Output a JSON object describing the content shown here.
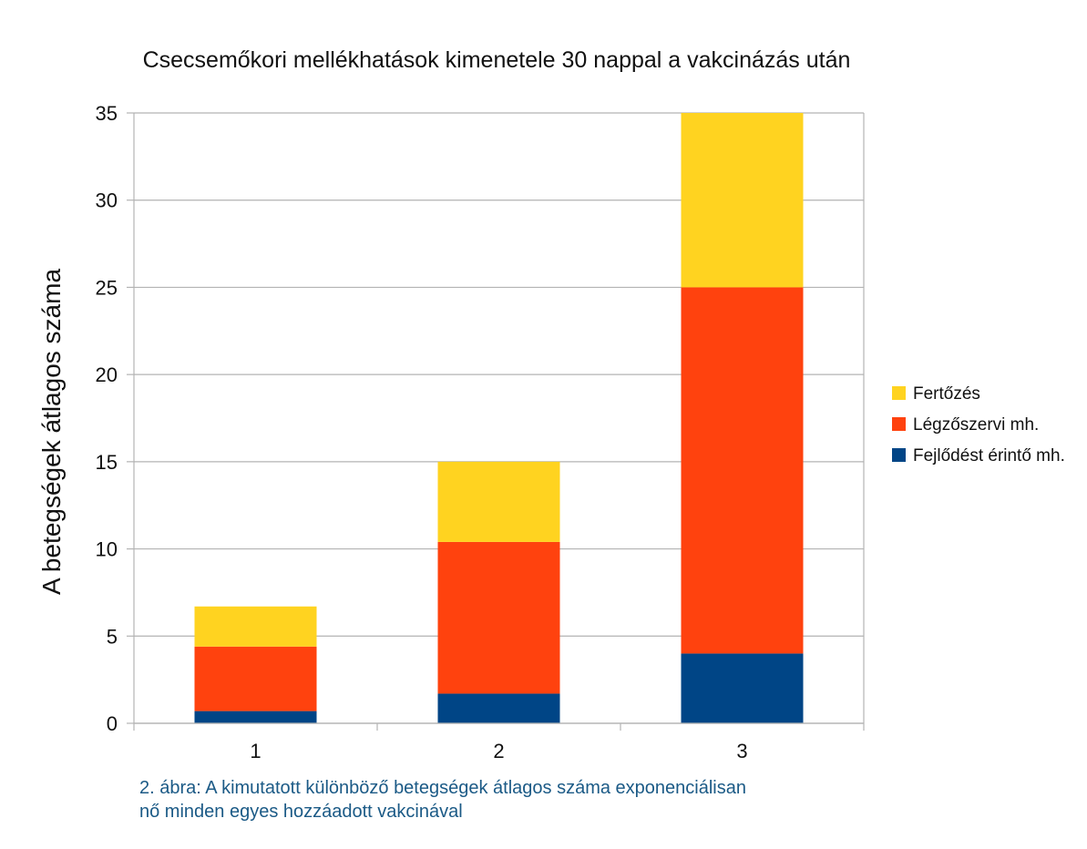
{
  "chart_data": {
    "type": "bar",
    "stacked": true,
    "title": "Csecsemőkori mellékhatások kimenetele 30 nappal a vakcinázás után",
    "xlabel": "",
    "ylabel": "A betegségek átlagos száma",
    "categories": [
      "1",
      "2",
      "3"
    ],
    "ylim": [
      0,
      35
    ],
    "yticks": [
      0,
      5,
      10,
      15,
      20,
      25,
      30,
      35
    ],
    "grid": true,
    "legend_position": "right",
    "series": [
      {
        "name": "Fejlődést érintő mh.",
        "color": "#004586",
        "values": [
          0.7,
          1.7,
          4.0
        ]
      },
      {
        "name": "Légzőszervi mh.",
        "color": "#ff420e",
        "values": [
          3.7,
          8.7,
          21.0
        ]
      },
      {
        "name": "Fertőzés",
        "color": "#ffd320",
        "values": [
          2.3,
          4.6,
          10.0
        ]
      }
    ]
  },
  "caption": {
    "line1": "2. ábra: A kimutatott különböző betegségek átlagos száma exponenciálisan",
    "line2": "nő minden egyes hozzáadott vakcinával"
  }
}
